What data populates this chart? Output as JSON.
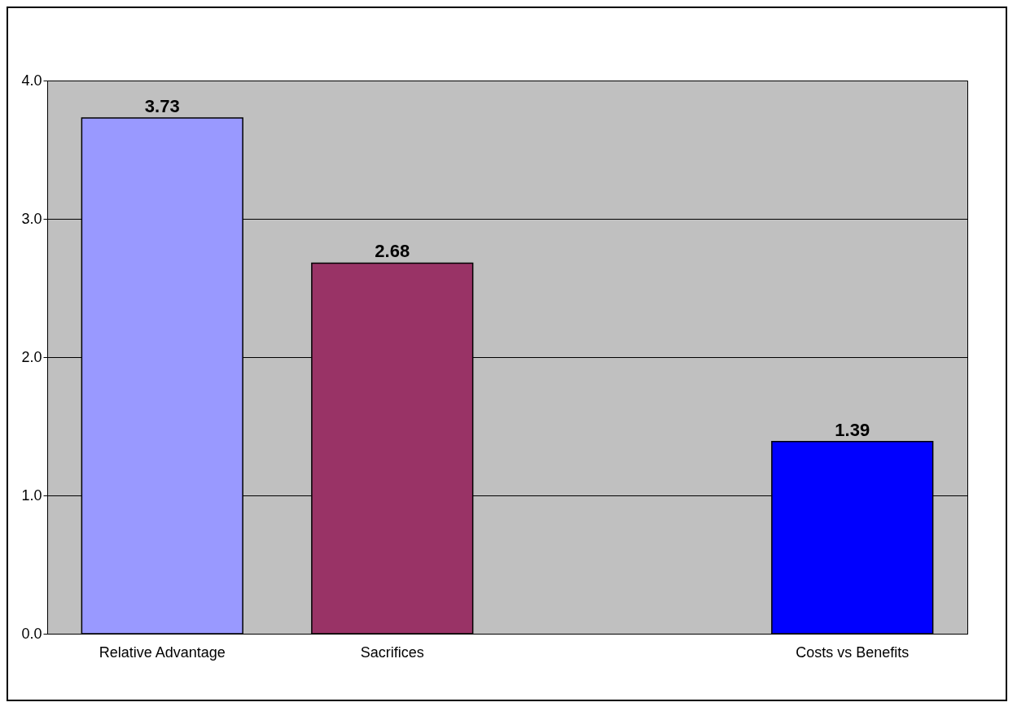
{
  "chart_data": {
    "type": "bar",
    "categories": [
      "Relative Advantage",
      "Sacrifices",
      null,
      "Costs vs Benefits"
    ],
    "values": [
      3.73,
      2.68,
      null,
      1.39
    ],
    "colors": [
      "#9999ff",
      "#993366",
      null,
      "#0000ff"
    ],
    "ylim": [
      0,
      4
    ],
    "yticks": [
      {
        "value": 0,
        "label": "0.0"
      },
      {
        "value": 1,
        "label": "1.0"
      },
      {
        "value": 2,
        "label": "2.0"
      },
      {
        "value": 3,
        "label": "3.0"
      },
      {
        "value": 4,
        "label": "4.0"
      }
    ],
    "grid": true,
    "data_labels": true
  }
}
